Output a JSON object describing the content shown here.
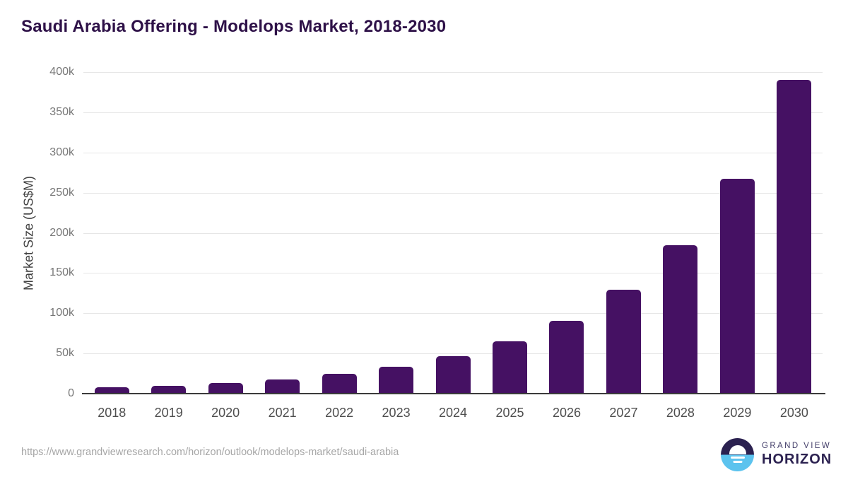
{
  "page": {
    "source_url": "https://www.grandviewresearch.com/horizon/outlook/modelops-market/saudi-arabia"
  },
  "chart_data": {
    "type": "bar",
    "title": "Saudi Arabia Offering - Modelops Market, 2018-2030",
    "categories": [
      "2018",
      "2019",
      "2020",
      "2021",
      "2022",
      "2023",
      "2024",
      "2025",
      "2026",
      "2027",
      "2028",
      "2029",
      "2030"
    ],
    "values": [
      7500,
      10000,
      13500,
      17500,
      25000,
      33500,
      46500,
      65000,
      91000,
      129000,
      185000,
      267000,
      390000
    ],
    "xlabel": "",
    "ylabel": "Market Size (US$M)",
    "ylim": [
      0,
      400000
    ],
    "ytick_step": 50000,
    "ytick_labels": [
      "0",
      "50k",
      "100k",
      "150k",
      "200k",
      "250k",
      "300k",
      "350k",
      "400k"
    ],
    "grid": true,
    "legend_position": "none",
    "bar_color": "#451163"
  },
  "branding": {
    "logo_line1": "GRAND VIEW",
    "logo_line2": "HORIZON",
    "logo_icon": "horizon-sunset-icon"
  },
  "colors": {
    "bar": "#451163",
    "title": "#2e1148",
    "gridline": "#e6e6e6",
    "axis_line": "#3b3b3b",
    "y_tick_label": "#777777",
    "x_tick_label": "#4e4e4e",
    "y_axis_title": "#414141",
    "source_url": "#a6a6a6",
    "logo_dark": "#2b2150",
    "logo_blue": "#5cc3ee",
    "logo_subtext": "#45406b"
  }
}
